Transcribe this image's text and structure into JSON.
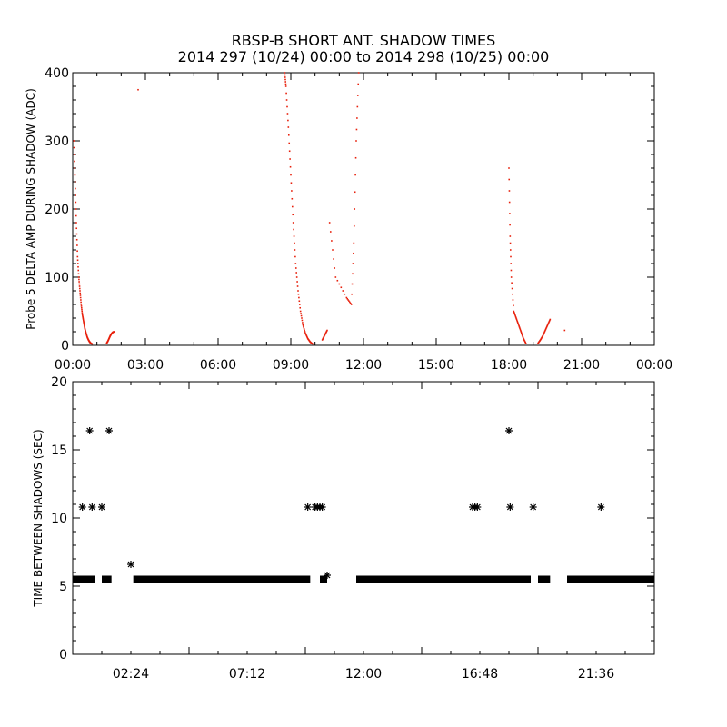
{
  "title_line1": "RBSP-B SHORT ANT. SHADOW TIMES",
  "title_line2": "2014 297 (10/24) 00:00 to 2014 298 (10/25) 00:00",
  "chart_data": [
    {
      "type": "scatter",
      "ylabel": "Probe 5 DELTA AMP DURING SHADOW (ADC)",
      "xlabel": "",
      "xlim": [
        "00:00",
        "24:00"
      ],
      "ylim": [
        0,
        400
      ],
      "x_tick_labels": [
        "00:00",
        "03:00",
        "06:00",
        "09:00",
        "12:00",
        "15:00",
        "18:00",
        "21:00",
        "00:00"
      ],
      "y_tick_labels": [
        "0",
        "100",
        "200",
        "300",
        "400"
      ],
      "color": "#e8200c",
      "series": [
        {
          "x_hours": [
            0.05,
            0.1,
            0.15,
            0.2,
            0.25,
            0.3,
            0.35,
            0.4,
            0.45,
            0.5,
            0.55,
            0.6,
            0.65,
            0.7,
            0.75,
            0.8
          ],
          "values": [
            300,
            240,
            180,
            130,
            100,
            80,
            60,
            45,
            35,
            25,
            18,
            12,
            8,
            5,
            3,
            2
          ]
        },
        {
          "x_hours": [
            1.4,
            1.45,
            1.5,
            1.55,
            1.6,
            1.65,
            1.7
          ],
          "values": [
            3,
            6,
            10,
            14,
            17,
            19,
            20
          ]
        },
        {
          "x_hours": [
            2.7
          ],
          "values": [
            375
          ]
        },
        {
          "x_hours": [
            8.75,
            8.8,
            8.9,
            9.0,
            9.1,
            9.2,
            9.3,
            9.4,
            9.5,
            9.6,
            9.7,
            9.8,
            9.9
          ],
          "values": [
            400,
            380,
            320,
            250,
            180,
            120,
            80,
            50,
            30,
            18,
            10,
            5,
            2
          ]
        },
        {
          "x_hours": [
            10.3,
            10.4,
            10.5
          ],
          "values": [
            8,
            15,
            22
          ]
        },
        {
          "x_hours": [
            10.6,
            10.85,
            11.3,
            11.5,
            11.6,
            11.7,
            11.8
          ],
          "values": [
            180,
            100,
            70,
            60,
            150,
            300,
            400
          ]
        },
        {
          "x_hours": [
            18.0,
            18.05,
            18.1,
            18.2,
            18.3,
            18.4,
            18.5,
            18.6,
            18.7
          ],
          "values": [
            260,
            160,
            100,
            50,
            40,
            30,
            20,
            10,
            3
          ]
        },
        {
          "x_hours": [
            19.2,
            19.3,
            19.4,
            19.5,
            19.6,
            19.7
          ],
          "values": [
            3,
            8,
            14,
            22,
            30,
            38
          ]
        },
        {
          "x_hours": [
            20.3
          ],
          "values": [
            22
          ]
        }
      ]
    },
    {
      "type": "scatter",
      "ylabel": "TIME BETWEEN SHADOWS (SEC)",
      "xlabel": "",
      "ylim": [
        0,
        20
      ],
      "x_tick_labels": [
        "02:24",
        "07:12",
        "12:00",
        "16:48",
        "21:36"
      ],
      "y_tick_labels": [
        "0",
        "5",
        "10",
        "15",
        "20"
      ],
      "marker": "*",
      "baseline_value": 5.5,
      "baseline_segments_hours": [
        [
          0.0,
          0.9
        ],
        [
          1.2,
          1.6
        ],
        [
          2.5,
          9.8
        ],
        [
          10.2,
          10.5
        ],
        [
          11.7,
          18.9
        ],
        [
          19.2,
          19.7
        ],
        [
          20.4,
          24.0
        ]
      ],
      "series": [
        {
          "x_hours": [
            0.4,
            0.7,
            0.8,
            1.2,
            1.5,
            2.4,
            9.7,
            10.0,
            10.1,
            10.2,
            10.3,
            10.5,
            16.5,
            16.6,
            16.7,
            18.0,
            18.05,
            19.0,
            21.8
          ],
          "values": [
            10.8,
            16.4,
            10.8,
            10.8,
            16.4,
            6.6,
            10.8,
            10.8,
            10.8,
            10.8,
            10.8,
            5.8,
            10.8,
            10.8,
            10.8,
            16.4,
            10.8,
            10.8,
            10.8
          ]
        }
      ]
    }
  ]
}
